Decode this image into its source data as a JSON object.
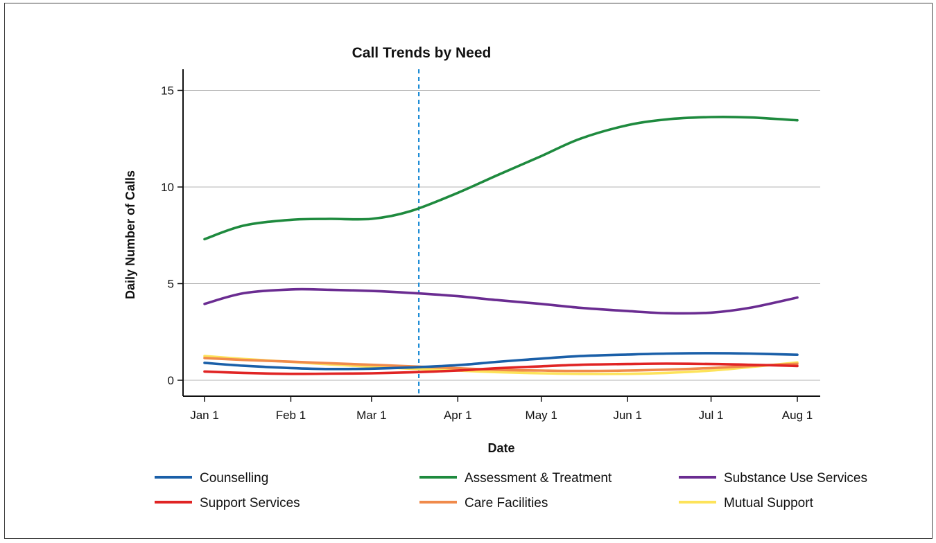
{
  "chart_data": {
    "type": "line",
    "title": "Call Trends by Need",
    "xlabel": "Date",
    "ylabel": "Daily Number of Calls",
    "x_ticks": [
      "Jan 1",
      "Feb 1",
      "Mar 1",
      "Apr 1",
      "May 1",
      "Jun 1",
      "Jul 1",
      "Aug 1"
    ],
    "y_ticks": [
      "0",
      "5",
      "10",
      "15"
    ],
    "ylim": [
      -0.8,
      16.2
    ],
    "grid": "horizontal",
    "legend_position": "bottom",
    "reference_line": {
      "date": "2020-03-18",
      "style": "dashed",
      "color": "#1f8dd6"
    },
    "dates": [
      "2020-01-01",
      "2020-01-15",
      "2020-02-01",
      "2020-02-15",
      "2020-03-01",
      "2020-03-15",
      "2020-04-01",
      "2020-04-15",
      "2020-05-01",
      "2020-05-15",
      "2020-06-01",
      "2020-06-15",
      "2020-07-01",
      "2020-07-15",
      "2020-08-01"
    ],
    "series": [
      {
        "name": "Counselling",
        "color": "#1a5fa8",
        "values": [
          0.9,
          0.75,
          0.63,
          0.58,
          0.6,
          0.66,
          0.78,
          0.95,
          1.12,
          1.25,
          1.33,
          1.38,
          1.4,
          1.38,
          1.32
        ]
      },
      {
        "name": "Assessment & Treatment",
        "color": "#1e8a3e",
        "values": [
          7.3,
          8.0,
          8.3,
          8.35,
          8.35,
          8.75,
          9.7,
          10.6,
          11.6,
          12.5,
          13.2,
          13.5,
          13.62,
          13.6,
          13.45
        ]
      },
      {
        "name": "Substance Use Services",
        "color": "#6a2c91",
        "values": [
          3.95,
          4.5,
          4.7,
          4.68,
          4.62,
          4.52,
          4.35,
          4.15,
          3.95,
          3.75,
          3.58,
          3.47,
          3.5,
          3.75,
          4.28
        ]
      },
      {
        "name": "Support Services",
        "color": "#e02424",
        "values": [
          0.45,
          0.38,
          0.33,
          0.34,
          0.36,
          0.41,
          0.5,
          0.62,
          0.72,
          0.8,
          0.84,
          0.86,
          0.84,
          0.8,
          0.74
        ]
      },
      {
        "name": "Care Facilities",
        "color": "#f08a4b",
        "values": [
          1.15,
          1.05,
          0.96,
          0.88,
          0.8,
          0.72,
          0.62,
          0.54,
          0.5,
          0.48,
          0.5,
          0.55,
          0.63,
          0.74,
          0.85
        ]
      },
      {
        "name": "Mutual Support",
        "color": "#fde35a",
        "values": [
          1.25,
          1.1,
          0.95,
          0.82,
          0.7,
          0.6,
          0.5,
          0.42,
          0.36,
          0.33,
          0.33,
          0.38,
          0.5,
          0.68,
          0.92
        ]
      }
    ]
  }
}
